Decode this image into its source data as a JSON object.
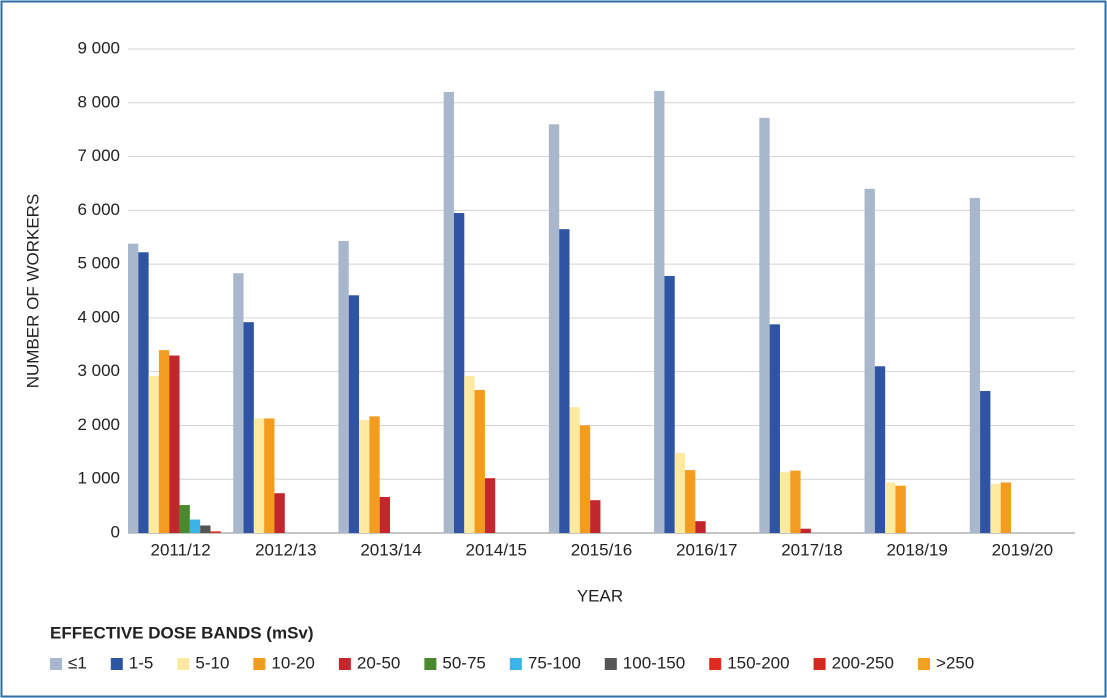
{
  "chart_data": {
    "type": "bar",
    "xlabel": "YEAR",
    "ylabel": "NUMBER OF WORKERS",
    "legend_title": "EFFECTIVE DOSE BANDS (mSv)",
    "legend": "bottom",
    "grid": true,
    "categories": [
      "2011/12",
      "2012/13",
      "2013/14",
      "2014/15",
      "2015/16",
      "2016/17",
      "2017/18",
      "2018/19",
      "2019/20"
    ],
    "ylim": [
      0,
      9000
    ],
    "yticks": [
      0,
      {
        "value": 1000,
        "label": "1 000"
      },
      {
        "value": 2000,
        "label": "2 000"
      },
      {
        "value": 3000,
        "label": "3 000"
      },
      {
        "value": 4000,
        "label": "4 000"
      },
      {
        "value": 5000,
        "label": "5 000"
      },
      {
        "value": 6000,
        "label": "6 000"
      },
      {
        "value": 7000,
        "label": "7 000"
      },
      {
        "value": 8000,
        "label": "8 000"
      },
      {
        "value": 9000,
        "label": "9 000"
      }
    ],
    "series": [
      {
        "name": "≤1",
        "color": "#a9b7cc",
        "values": [
          5380,
          4830,
          5430,
          8200,
          7600,
          8220,
          7720,
          6400,
          6230
        ]
      },
      {
        "name": "1-5",
        "color": "#2e54a3",
        "values": [
          5220,
          3920,
          4420,
          5950,
          5650,
          4780,
          3880,
          3100,
          2640
        ]
      },
      {
        "name": "5-10",
        "color": "#fde9a0",
        "values": [
          2920,
          2130,
          2100,
          2920,
          2340,
          1490,
          1130,
          940,
          910
        ]
      },
      {
        "name": "10-20",
        "color": "#f39c1f",
        "values": [
          3400,
          2130,
          2170,
          2660,
          2000,
          1170,
          1160,
          880,
          940
        ]
      },
      {
        "name": "20-50",
        "color": "#c1272d",
        "values": [
          3300,
          740,
          670,
          1020,
          610,
          220,
          80,
          0,
          0
        ]
      },
      {
        "name": "50-75",
        "color": "#4a8a2e",
        "values": [
          520,
          0,
          0,
          0,
          0,
          0,
          0,
          0,
          0
        ]
      },
      {
        "name": "75-100",
        "color": "#3ab4e8",
        "values": [
          250,
          0,
          0,
          0,
          0,
          0,
          0,
          0,
          0
        ]
      },
      {
        "name": "100-150",
        "color": "#555555",
        "values": [
          140,
          0,
          0,
          0,
          0,
          0,
          0,
          0,
          0
        ]
      },
      {
        "name": "150-200",
        "color": "#e02a20",
        "values": [
          30,
          0,
          0,
          0,
          0,
          0,
          0,
          0,
          0
        ]
      },
      {
        "name": "200-250",
        "color": "#d42a1e",
        "values": [
          0,
          0,
          0,
          0,
          0,
          0,
          0,
          0,
          0
        ]
      },
      {
        "name": ">250",
        "color": "#f5a020",
        "values": [
          0,
          0,
          0,
          0,
          0,
          0,
          0,
          0,
          0
        ]
      }
    ]
  }
}
